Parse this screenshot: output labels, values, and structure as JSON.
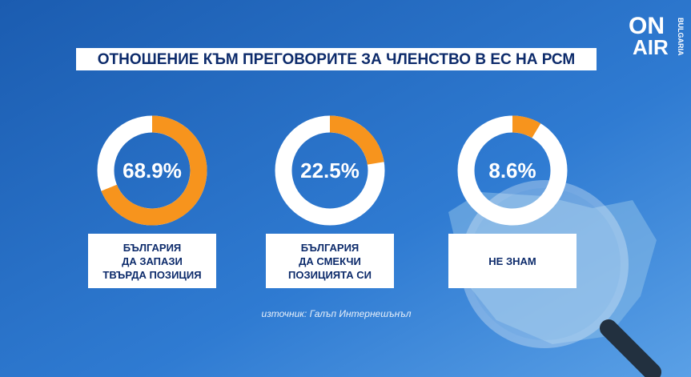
{
  "chart_data": {
    "type": "donut",
    "title": "ОТНОШЕНИЕ КЪМ ПРЕГОВОРИТЕ ЗА ЧЛЕНСТВО В ЕС НА РСМ",
    "categories": [
      "БЪЛГАРИЯ\nДА ЗАПАЗИ\nТВЪРДА ПОЗИЦИЯ",
      "БЪЛГАРИЯ\nДА СМЕКЧИ\nПОЗИЦИЯТА СИ",
      "НЕ ЗНАМ"
    ],
    "values": [
      68.9,
      22.5,
      8.6
    ],
    "value_labels": [
      "68.9%",
      "22.5%",
      "8.6%"
    ],
    "color": "#f7941d",
    "source": "източник: Галъп Интернешънъл"
  },
  "logo": {
    "line1": "ON",
    "line2": "AIR",
    "side": "BULGARIA"
  }
}
